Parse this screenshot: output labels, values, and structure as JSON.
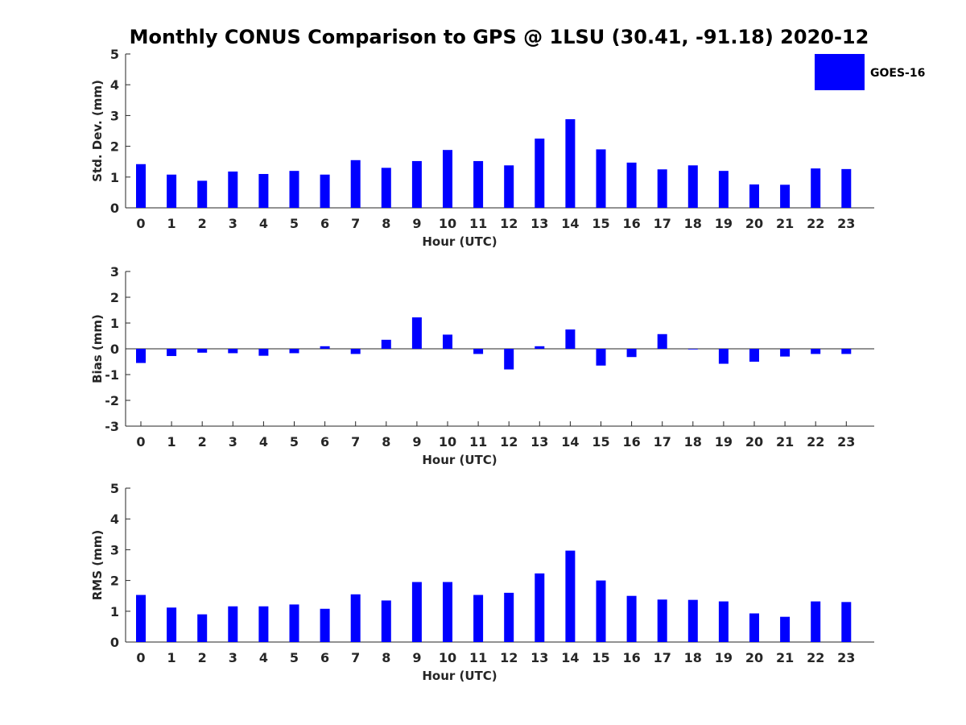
{
  "chart_data": {
    "type": "bar",
    "title": "Monthly CONUS Comparison to GPS @ 1LSU (30.41, -91.18) 2020-12",
    "legend": {
      "label": "GOES-16",
      "color": "#0000ff",
      "position": "top-right"
    },
    "bar_color": "#0000ff",
    "categories": [
      "0",
      "1",
      "2",
      "3",
      "4",
      "5",
      "6",
      "7",
      "8",
      "9",
      "10",
      "11",
      "12",
      "13",
      "14",
      "15",
      "16",
      "17",
      "18",
      "19",
      "20",
      "21",
      "22",
      "23"
    ],
    "panels": [
      {
        "id": "std",
        "ylabel": "Std. Dev. (mm)",
        "xlabel": "Hour (UTC)",
        "ylim": [
          0,
          5
        ],
        "yticks": [
          "0",
          "1",
          "2",
          "3",
          "4",
          "5"
        ],
        "series": [
          {
            "name": "GOES-16",
            "values": [
              1.42,
              1.08,
              0.88,
              1.18,
              1.1,
              1.2,
              1.08,
              1.55,
              1.3,
              1.52,
              1.88,
              1.52,
              1.38,
              2.25,
              2.88,
              1.9,
              1.47,
              1.25,
              1.38,
              1.2,
              0.76,
              0.75,
              1.28,
              1.26
            ]
          }
        ]
      },
      {
        "id": "bias",
        "ylabel": "Bias (mm)",
        "xlabel": "Hour (UTC)",
        "ylim": [
          -3,
          3
        ],
        "yticks": [
          "-3",
          "-2",
          "-1",
          "0",
          "1",
          "2",
          "3"
        ],
        "series": [
          {
            "name": "GOES-16",
            "values": [
              -0.55,
              -0.28,
              -0.15,
              -0.17,
              -0.27,
              -0.17,
              0.1,
              -0.2,
              0.35,
              1.22,
              0.55,
              -0.2,
              -0.8,
              0.1,
              0.75,
              -0.65,
              -0.32,
              0.57,
              -0.02,
              -0.58,
              -0.5,
              -0.3,
              -0.2,
              -0.2
            ]
          }
        ]
      },
      {
        "id": "rms",
        "ylabel": "RMS (mm)",
        "xlabel": "Hour (UTC)",
        "ylim": [
          0,
          5
        ],
        "yticks": [
          "0",
          "1",
          "2",
          "3",
          "4",
          "5"
        ],
        "series": [
          {
            "name": "GOES-16",
            "values": [
              1.53,
              1.12,
              0.9,
              1.16,
              1.16,
              1.22,
              1.08,
              1.55,
              1.35,
              1.95,
              1.95,
              1.53,
              1.6,
              2.23,
              2.97,
              2.0,
              1.5,
              1.38,
              1.37,
              1.32,
              0.93,
              0.82,
              1.32,
              1.3
            ]
          }
        ]
      }
    ]
  }
}
